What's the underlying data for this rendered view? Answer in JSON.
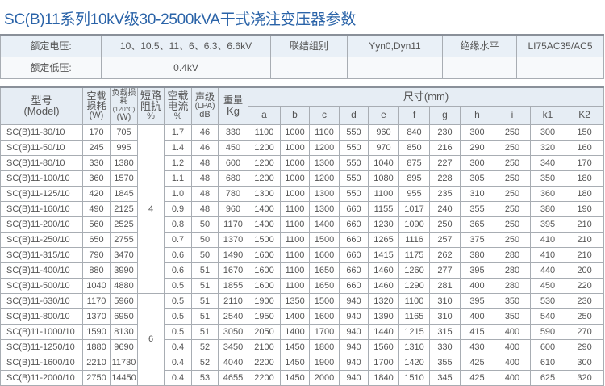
{
  "title": "SC(B)11系列10kV级30-2500kVA干式浇注变压器参数",
  "info": {
    "rated_voltage_label": "额定电压:",
    "rated_voltage": "10、10.5、11、6、6.3、6.6kV",
    "connection_label": "联结组别",
    "connection": "Yyn0,Dyn11",
    "insulation_label": "绝缘水平",
    "insulation": "LI75AC35/AC5",
    "low_voltage_label": "额定低压:",
    "low_voltage": "0.4kV"
  },
  "headers": {
    "model": "型号",
    "model_en": "(Model)",
    "noload_loss": "空载损耗",
    "noload_loss_unit": "(W)",
    "load_loss": "负载损耗",
    "load_loss_temp": "(120℃)",
    "load_loss_unit": "(W)",
    "impedance": "短路阻抗",
    "impedance_unit": "%",
    "noload_current": "空载电流",
    "noload_current_unit": "%",
    "sound": "声级",
    "sound_sub": "(LPA)",
    "sound_unit": "dB",
    "weight": "重量",
    "weight_unit": "Kg",
    "dims": "尺寸(mm)",
    "dim_cols": [
      "a",
      "b",
      "c",
      "d",
      "e",
      "f",
      "g",
      "h",
      "i",
      "k1",
      "K2"
    ]
  },
  "impedance_groups": [
    "4",
    "6"
  ],
  "rows": [
    [
      "SC(B)11-30/10",
      "170",
      "705",
      "1.7",
      "46",
      "330",
      "1100",
      "1000",
      "1100",
      "550",
      "960",
      "840",
      "230",
      "300",
      "250",
      "300",
      "150"
    ],
    [
      "SC(B)11-50/10",
      "245",
      "995",
      "1.4",
      "46",
      "450",
      "1200",
      "1000",
      "1200",
      "550",
      "970",
      "850",
      "216",
      "290",
      "250",
      "320",
      "160"
    ],
    [
      "SC(B)11-80/10",
      "330",
      "1380",
      "1.2",
      "48",
      "600",
      "1200",
      "1000",
      "1300",
      "550",
      "1040",
      "875",
      "227",
      "300",
      "250",
      "340",
      "170"
    ],
    [
      "SC(B)11-100/10",
      "360",
      "1570",
      "1.1",
      "48",
      "680",
      "1200",
      "1000",
      "1200",
      "550",
      "1080",
      "895",
      "228",
      "305",
      "250",
      "350",
      "180"
    ],
    [
      "SC(B)11-125/10",
      "420",
      "1845",
      "1.0",
      "48",
      "780",
      "1300",
      "1000",
      "1300",
      "550",
      "1100",
      "955",
      "235",
      "310",
      "250",
      "360",
      "180"
    ],
    [
      "SC(B)11-160/10",
      "490",
      "2125",
      "0.9",
      "48",
      "960",
      "1400",
      "1100",
      "1300",
      "660",
      "1155",
      "1017",
      "240",
      "355",
      "250",
      "380",
      "190"
    ],
    [
      "SC(B)11-200/10",
      "560",
      "2525",
      "0.8",
      "50",
      "1170",
      "1400",
      "1100",
      "1400",
      "660",
      "1230",
      "1090",
      "250",
      "365",
      "250",
      "395",
      "210"
    ],
    [
      "SC(B)11-250/10",
      "650",
      "2755",
      "0.7",
      "50",
      "1370",
      "1500",
      "1100",
      "1500",
      "660",
      "1265",
      "1116",
      "257",
      "375",
      "250",
      "410",
      "210"
    ],
    [
      "SC(B)11-315/10",
      "790",
      "3470",
      "0.6",
      "50",
      "1490",
      "1600",
      "1100",
      "1600",
      "660",
      "1415",
      "1175",
      "262",
      "380",
      "280",
      "410",
      "210"
    ],
    [
      "SC(B)11-400/10",
      "880",
      "3990",
      "0.6",
      "51",
      "1670",
      "1600",
      "1100",
      "1650",
      "660",
      "1460",
      "1260",
      "277",
      "395",
      "280",
      "440",
      "200"
    ],
    [
      "SC(B)11-500/10",
      "1040",
      "4880",
      "0.5",
      "51",
      "1855",
      "1600",
      "1100",
      "1650",
      "660",
      "1460",
      "1290",
      "281",
      "400",
      "280",
      "450",
      "220"
    ],
    [
      "SC(B)11-630/10",
      "1170",
      "5960",
      "0.5",
      "51",
      "2110",
      "1900",
      "1350",
      "1500",
      "940",
      "1320",
      "1100",
      "310",
      "395",
      "350",
      "530",
      "230"
    ],
    [
      "SC(B)11-800/10",
      "1370",
      "6950",
      "0.5",
      "51",
      "2540",
      "1950",
      "1400",
      "1600",
      "940",
      "1390",
      "1165",
      "310",
      "400",
      "350",
      "540",
      "250"
    ],
    [
      "SC(B)11-1000/10",
      "1590",
      "8130",
      "0.5",
      "51",
      "3050",
      "2050",
      "1400",
      "1700",
      "940",
      "1440",
      "1215",
      "315",
      "415",
      "400",
      "590",
      "270"
    ],
    [
      "SC(B)11-1250/10",
      "1880",
      "9690",
      "0.4",
      "52",
      "3450",
      "2100",
      "1450",
      "1800",
      "940",
      "1560",
      "1310",
      "330",
      "430",
      "400",
      "600",
      "290"
    ],
    [
      "SC(B)11-1600/10",
      "2210",
      "11730",
      "0.4",
      "52",
      "4040",
      "2200",
      "1450",
      "1900",
      "940",
      "1700",
      "1420",
      "355",
      "425",
      "400",
      "610",
      "300"
    ],
    [
      "SC(B)11-2000/10",
      "2750",
      "14450",
      "0.4",
      "53",
      "4655",
      "2200",
      "1450",
      "2000",
      "940",
      "1840",
      "1510",
      "345",
      "425",
      "400",
      "625",
      "320"
    ]
  ]
}
